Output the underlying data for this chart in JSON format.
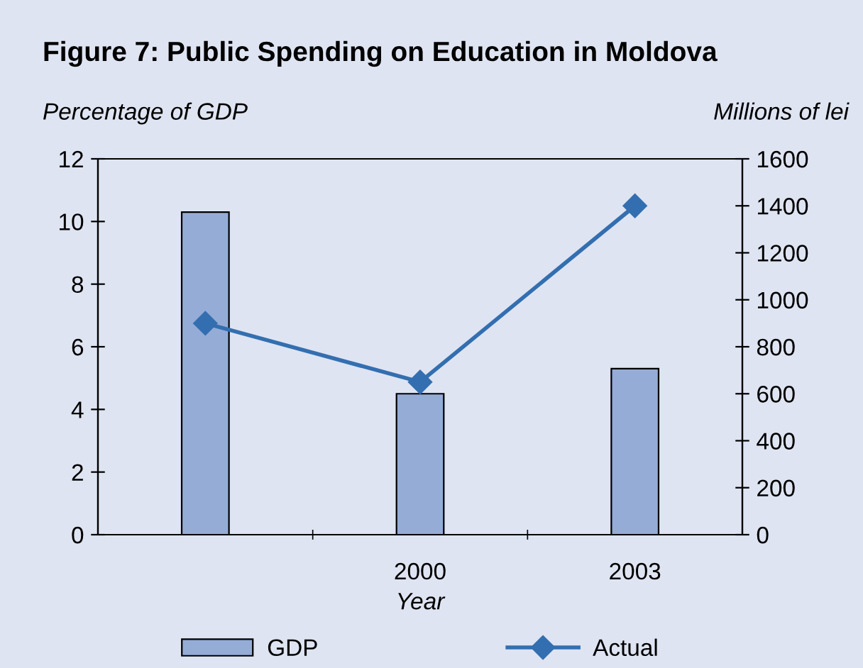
{
  "chart_data": {
    "type": "bar",
    "title": "Figure 7: Public Spending on Education in Moldova",
    "xlabel": "Year",
    "ylabel": "Percentage of GDP",
    "y2label": "Millions of lei",
    "categories": [
      null,
      "2000",
      "2003"
    ],
    "series": [
      {
        "name": "GDP",
        "color": "#95acd6",
        "values": [
          10.3,
          4.5,
          5.3
        ]
      },
      {
        "name": "Actual",
        "type": "line",
        "axis": "y2",
        "color": "#336fb0",
        "marker": "diamond",
        "values": [
          900,
          650,
          1400
        ]
      }
    ],
    "ylim": [
      0,
      12
    ],
    "yticks": [
      0,
      2,
      4,
      6,
      8,
      10,
      12
    ],
    "y2lim": [
      0,
      1600
    ],
    "y2ticks": [
      0,
      200,
      400,
      600,
      800,
      1000,
      1200,
      1400,
      1600
    ],
    "grid": false,
    "legend": "bottom"
  }
}
